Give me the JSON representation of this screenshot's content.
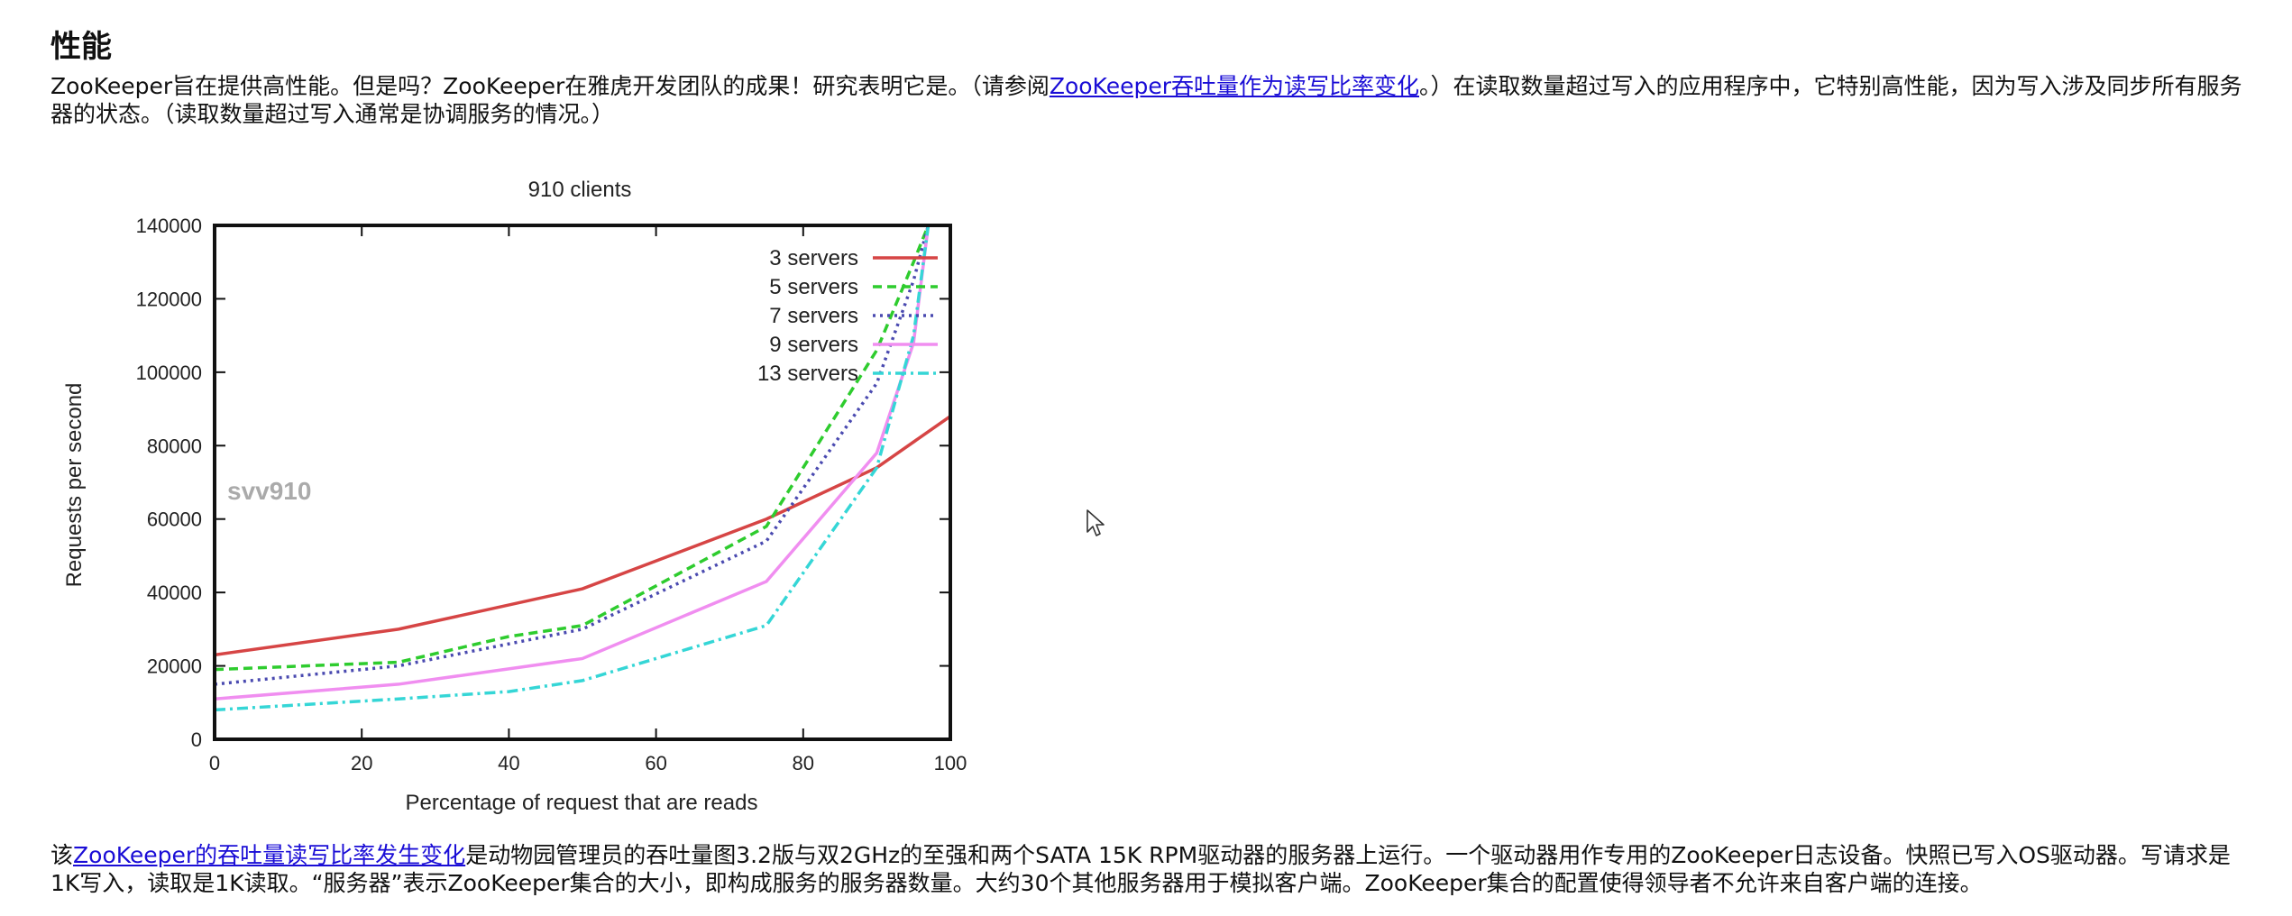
{
  "page": {
    "heading": "性能",
    "intro": {
      "text_before": "ZooKeeper旨在提供高性能。但是吗？ZooKeeper在雅虎开发团队的成果！研究表明它是。（请参阅",
      "link": "ZooKeeper吞吐量作为读写比率变化",
      "text_after": "。）在读取数量超过写入的应用程序中，它特别高性能，因为写入涉及同步所有服务器的状态。（读取数量超过写入通常是协调服务的情况。）"
    },
    "caption": {
      "text_before": "该",
      "link": "ZooKeeper的吞吐量读写比率发生变化",
      "text_after": "是动物园管理员的吞吐量图3.2版与双2GHz的至强和两个SATA 15K RPM驱动器的服务器上运行。一个驱动器用作专用的ZooKeeper日志设备。快照已写入OS驱动器。写请求是1K写入，读取是1K读取。“服务器”表示ZooKeeper集合的大小，即构成服务的服务器数量。大约30个其他服务器用于模拟客户端。ZooKeeper集合的配置使得领导者不允许来自客户端的连接。"
    },
    "cursor_icon": "arrow-cursor-icon"
  },
  "chart_data": {
    "type": "line",
    "title": "910 clients",
    "xlabel": "Percentage of request that are reads",
    "ylabel": "Requests per second",
    "watermark": "svv910",
    "xlim": [
      0,
      100
    ],
    "ylim": [
      0,
      140000
    ],
    "x_ticks": [
      0,
      20,
      40,
      60,
      80,
      100
    ],
    "y_ticks": [
      0,
      20000,
      40000,
      60000,
      80000,
      100000,
      120000,
      140000
    ],
    "grid": false,
    "legend_position": "top-right",
    "series": [
      {
        "name": "3 servers",
        "color": "#d64545",
        "dash": "",
        "x": [
          0,
          25,
          50,
          75,
          90,
          100
        ],
        "y": [
          23000,
          30000,
          41000,
          60000,
          74000,
          88000
        ]
      },
      {
        "name": "5 servers",
        "color": "#2ecc2e",
        "dash": "10 6",
        "x": [
          0,
          25,
          40,
          50,
          75,
          90,
          95,
          97
        ],
        "y": [
          19000,
          21000,
          28000,
          31000,
          58000,
          106000,
          130000,
          140000
        ]
      },
      {
        "name": "7 servers",
        "color": "#4a4ab0",
        "dash": "3 5",
        "x": [
          0,
          25,
          50,
          75,
          90,
          95,
          97
        ],
        "y": [
          15000,
          20000,
          30000,
          54000,
          97000,
          125000,
          140000
        ]
      },
      {
        "name": "9 servers",
        "color": "#f08ef0",
        "dash": "",
        "x": [
          0,
          25,
          50,
          75,
          90,
          95,
          97
        ],
        "y": [
          11000,
          15000,
          22000,
          43000,
          78000,
          108000,
          140000
        ]
      },
      {
        "name": "13 servers",
        "color": "#35d6d6",
        "dash": "12 5 3 5",
        "x": [
          0,
          25,
          40,
          50,
          75,
          90,
          95,
          97
        ],
        "y": [
          8000,
          11000,
          13000,
          16000,
          31000,
          74000,
          110000,
          140000
        ]
      }
    ]
  }
}
